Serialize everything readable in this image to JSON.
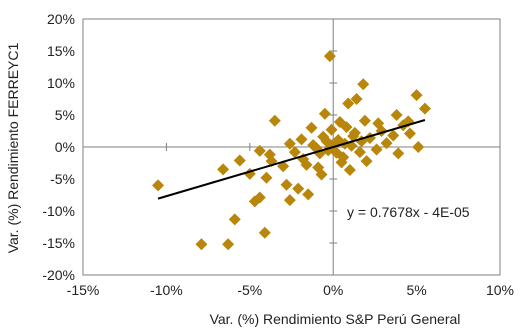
{
  "chart_data": {
    "type": "scatter",
    "title": "",
    "xlabel": "Var. (%) Rendimiento S&P Perú General",
    "ylabel": "Var. (%) Rendimiento FERREYC1",
    "xlim": [
      -15,
      10
    ],
    "ylim": [
      -20,
      20
    ],
    "x_ticks": [
      -15,
      -10,
      -5,
      0,
      5,
      10
    ],
    "y_ticks": [
      -20,
      -15,
      -10,
      -5,
      0,
      5,
      10,
      15,
      20
    ],
    "x_tick_labels": [
      "-15%",
      "-10%",
      "-5%",
      "0%",
      "5%",
      "10%"
    ],
    "y_tick_labels": [
      "-20%",
      "-15%",
      "-10%",
      "-5%",
      "0%",
      "5%",
      "10%",
      "15%",
      "20%"
    ],
    "grid": false,
    "marker_color": "#B8860B",
    "trendline": {
      "slope": 0.7678,
      "intercept": -4e-05,
      "x_range": [
        -10.5,
        5.5
      ],
      "color": "#000000",
      "equation_label": "y = 0.7678x - 4E-05"
    },
    "series": [
      {
        "points": [
          [
            -10.5,
            -6.0
          ],
          [
            -7.9,
            -15.2
          ],
          [
            -6.3,
            -15.2
          ],
          [
            -5.9,
            -11.3
          ],
          [
            -4.1,
            -13.4
          ],
          [
            -4.7,
            -8.5
          ],
          [
            -4.4,
            -7.9
          ],
          [
            -6.6,
            -3.5
          ],
          [
            -5.6,
            -2.1
          ],
          [
            -5.0,
            -4.2
          ],
          [
            -3.5,
            4.1
          ],
          [
            -4.4,
            -0.6
          ],
          [
            -3.8,
            -1.2
          ],
          [
            -3.7,
            -2.2
          ],
          [
            -4.0,
            -4.8
          ],
          [
            -3.0,
            -3.0
          ],
          [
            -2.8,
            -5.9
          ],
          [
            -2.6,
            -8.3
          ],
          [
            -2.1,
            -6.5
          ],
          [
            -1.5,
            -7.4
          ],
          [
            -2.3,
            -0.8
          ],
          [
            -1.8,
            -1.9
          ],
          [
            -1.2,
            0.3
          ],
          [
            -0.9,
            -3.2
          ],
          [
            -0.6,
            1.6
          ],
          [
            -0.3,
            -0.5
          ],
          [
            0.0,
            0.4
          ],
          [
            0.3,
            1.1
          ],
          [
            0.6,
            -1.6
          ],
          [
            0.8,
            3.1
          ],
          [
            1.1,
            0.2
          ],
          [
            1.3,
            2.2
          ],
          [
            1.6,
            -0.8
          ],
          [
            1.9,
            4.1
          ],
          [
            2.2,
            1.4
          ],
          [
            2.6,
            -0.4
          ],
          [
            2.9,
            2.5
          ],
          [
            3.2,
            0.6
          ],
          [
            3.6,
            1.8
          ],
          [
            3.9,
            -1.0
          ],
          [
            4.2,
            3.4
          ],
          [
            4.6,
            2.1
          ],
          [
            5.0,
            8.1
          ],
          [
            5.1,
            0.0
          ],
          [
            5.5,
            6.0
          ],
          [
            4.5,
            4.0
          ],
          [
            3.8,
            5.0
          ],
          [
            1.8,
            9.8
          ],
          [
            -0.2,
            14.2
          ],
          [
            -0.5,
            5.2
          ],
          [
            0.9,
            6.8
          ],
          [
            1.4,
            7.5
          ],
          [
            -1.3,
            3.0
          ],
          [
            2.0,
            -2.2
          ],
          [
            -0.8,
            -1.0
          ],
          [
            0.5,
            -2.4
          ],
          [
            -1.9,
            1.2
          ],
          [
            1.0,
            -3.6
          ],
          [
            -2.6,
            0.5
          ],
          [
            2.7,
            3.7
          ],
          [
            -0.1,
            2.7
          ],
          [
            0.2,
            -0.9
          ],
          [
            -0.4,
            0.9
          ],
          [
            0.7,
            0.5
          ],
          [
            -1.0,
            -0.2
          ],
          [
            1.2,
            1.7
          ],
          [
            -1.6,
            -2.8
          ],
          [
            0.4,
            3.9
          ],
          [
            -0.7,
            -4.3
          ],
          [
            1.7,
            0.9
          ]
        ]
      }
    ]
  }
}
